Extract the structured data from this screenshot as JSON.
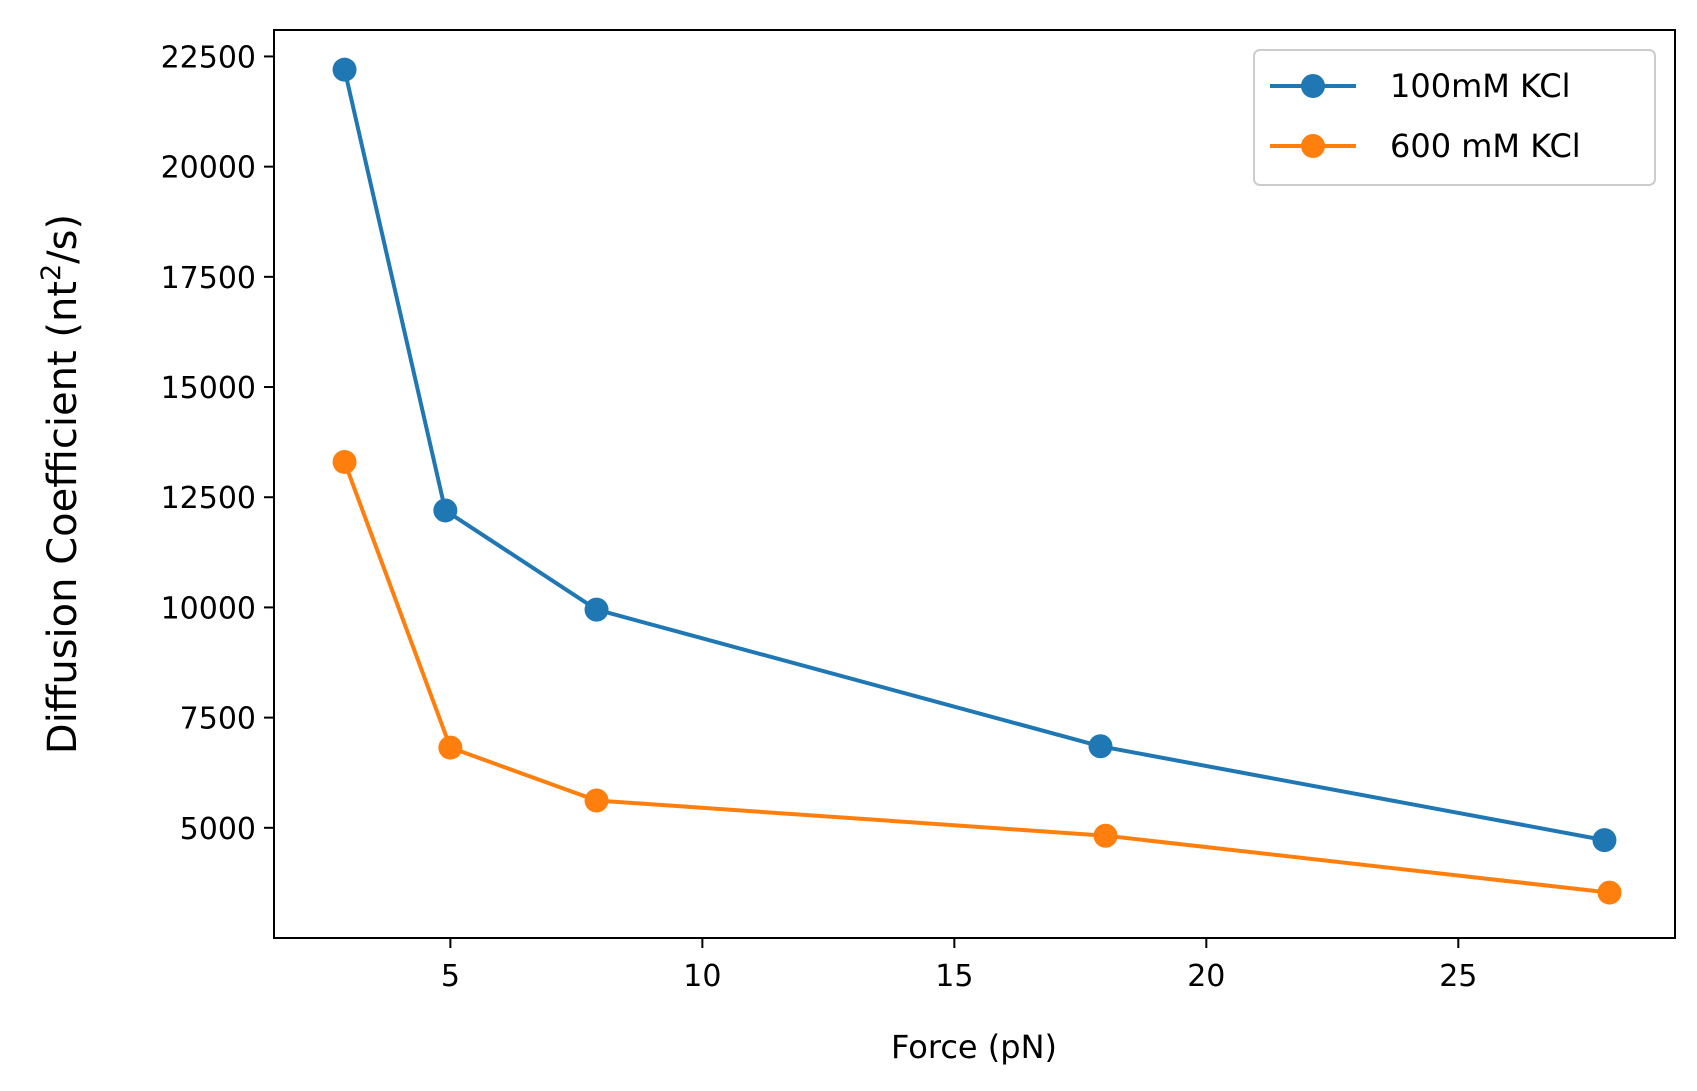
{
  "chart_data": {
    "type": "line",
    "title": "",
    "xlabel": "Force (pN)",
    "ylabel_main": "Diffusion Coefficient (nt",
    "ylabel_sup": "2",
    "ylabel_tail": "/s)",
    "xlim": [
      1.5,
      29.3
    ],
    "ylim": [
      2500,
      23100
    ],
    "xticks": [
      5,
      10,
      15,
      20,
      25
    ],
    "yticks": [
      5000,
      7500,
      10000,
      12500,
      15000,
      17500,
      20000,
      22500
    ],
    "grid": false,
    "legend_position": "top-right",
    "series": [
      {
        "name": "100mM KCl",
        "color": "#1f77b4",
        "x": [
          2.9,
          4.9,
          7.9,
          17.9,
          27.9
        ],
        "y": [
          22200,
          12200,
          9950,
          6850,
          4720
        ]
      },
      {
        "name": "600 mM KCl",
        "color": "#ff7f0e",
        "x": [
          2.9,
          5.0,
          7.9,
          18.0,
          28.0
        ],
        "y": [
          13300,
          6820,
          5620,
          4820,
          3530
        ]
      }
    ]
  }
}
